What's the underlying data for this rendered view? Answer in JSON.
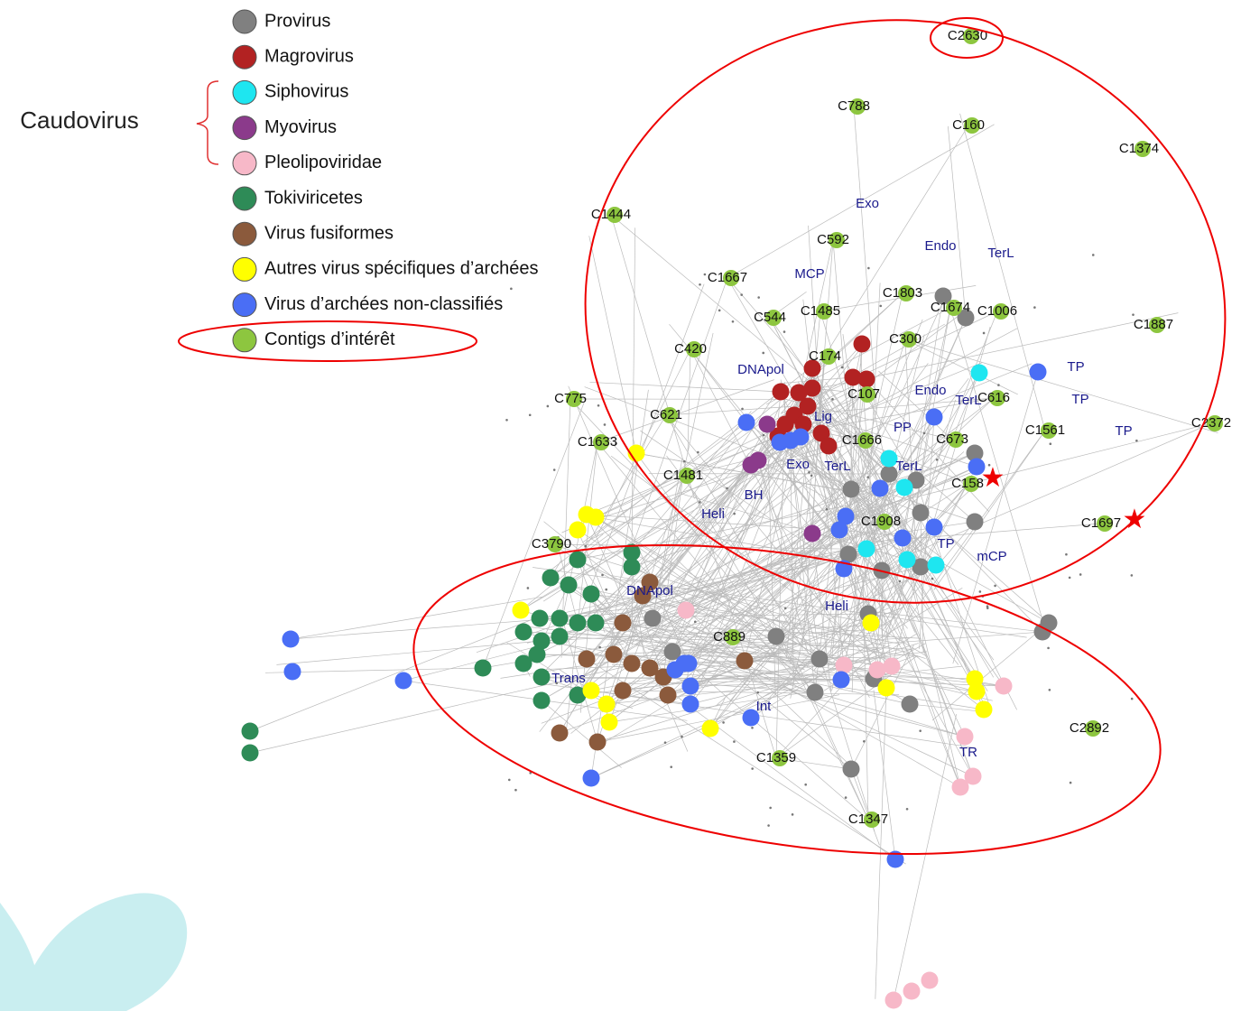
{
  "legend": {
    "group_label": "Caudovirus",
    "items": [
      {
        "label": "Provirus",
        "color": "#808080"
      },
      {
        "label": "Magrovirus",
        "color": "#b22222"
      },
      {
        "label": "Siphovirus",
        "color": "#1ee6f0"
      },
      {
        "label": "Myovirus",
        "color": "#8b3a8b"
      },
      {
        "label": "Pleolipoviridae",
        "color": "#f7b8c8"
      },
      {
        "label": "Tokiviricetes",
        "color": "#2e8b57"
      },
      {
        "label": "Virus fusiformes",
        "color": "#8b5a3c"
      },
      {
        "label": "Autres virus spécifiques d’archées",
        "color": "#ffff00"
      },
      {
        "label": "Virus d’archées non-classifiés",
        "color": "#4a6ef5"
      },
      {
        "label": "Contigs d’intérêt",
        "color": "#8dc63f"
      }
    ]
  },
  "contigs": [
    "C2630",
    "C788",
    "C160",
    "C1374",
    "C1444",
    "C592",
    "C1667",
    "C1803",
    "C1674",
    "C1006",
    "C544",
    "C1485",
    "C1887",
    "C420",
    "C300",
    "C174",
    "C107",
    "C616",
    "C775",
    "C621",
    "C1666",
    "C673",
    "C1561",
    "C2372",
    "C1633",
    "C1481",
    "C158",
    "C1908",
    "C1697",
    "C3790",
    "C889",
    "C2892",
    "C1359",
    "C1347"
  ],
  "proteins": [
    "Exo",
    "Endo",
    "TerL",
    "MCP",
    "TP",
    "DNApol",
    "Endo",
    "TerL",
    "TP",
    "Lig",
    "PP",
    "TP",
    "Exo",
    "TerL",
    "TerL",
    "BH",
    "Heli",
    "TP",
    "mCP",
    "DNApol",
    "Heli",
    "Trans",
    "Int",
    "TR"
  ]
}
